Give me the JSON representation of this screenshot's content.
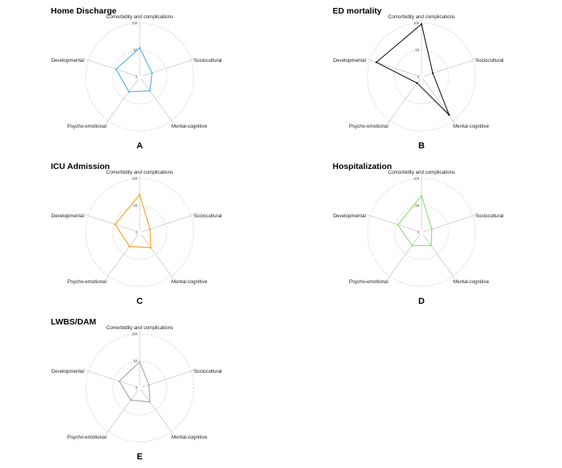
{
  "chart_data": [
    {
      "type": "radar",
      "title": "Home Discharge",
      "panel_label": "A",
      "color": "#56B4E9",
      "axes": [
        "Comorbidity and complications",
        "Sociocultural",
        "Mental-cognitive",
        "Psycho-emotional",
        "Developmental"
      ],
      "ticks": [
        "0",
        "50",
        "100"
      ],
      "rlim": [
        0,
        100
      ],
      "values": [
        54,
        24,
        32,
        34,
        46
      ]
    },
    {
      "type": "radar",
      "title": "ED mortality",
      "panel_label": "B",
      "color": "#000000",
      "axes": [
        "Comorbidity and complications",
        "Sociocultural",
        "Mental-cognitive",
        "Psycho-emotional",
        "Developmental"
      ],
      "ticks": [
        "0",
        "50",
        "100"
      ],
      "rlim": [
        0,
        100
      ],
      "values": [
        98,
        22,
        87,
        14,
        88
      ]
    },
    {
      "type": "radar",
      "title": "ICU Admission",
      "panel_label": "C",
      "color": "#F5A623",
      "axes": [
        "Comorbidity and complications",
        "Sociocultural",
        "Mental-cognitive",
        "Psycho-emotional",
        "Developmental"
      ],
      "ticks": [
        "0",
        "50",
        "100"
      ],
      "rlim": [
        0,
        100
      ],
      "values": [
        70,
        20,
        35,
        32,
        48
      ]
    },
    {
      "type": "radar",
      "title": "Hospitalization",
      "panel_label": "D",
      "color": "#8EE07A",
      "axes": [
        "Comorbidity and complications",
        "Sociocultural",
        "Mental-cognitive",
        "Psycho-emotional",
        "Developmental"
      ],
      "ticks": [
        "0",
        "50",
        "100"
      ],
      "rlim": [
        0,
        100
      ],
      "values": [
        68,
        20,
        30,
        30,
        46
      ]
    },
    {
      "type": "radar",
      "title": "LWBS/DAM",
      "panel_label": "E",
      "color": "#AAAAAA",
      "axes": [
        "Comorbidity and complications",
        "Sociocultural",
        "Mental-cognitive",
        "Psycho-emotional",
        "Developmental"
      ],
      "ticks": [
        "0",
        "50",
        "100"
      ],
      "rlim": [
        0,
        100
      ],
      "values": [
        48,
        18,
        32,
        28,
        40
      ]
    }
  ]
}
